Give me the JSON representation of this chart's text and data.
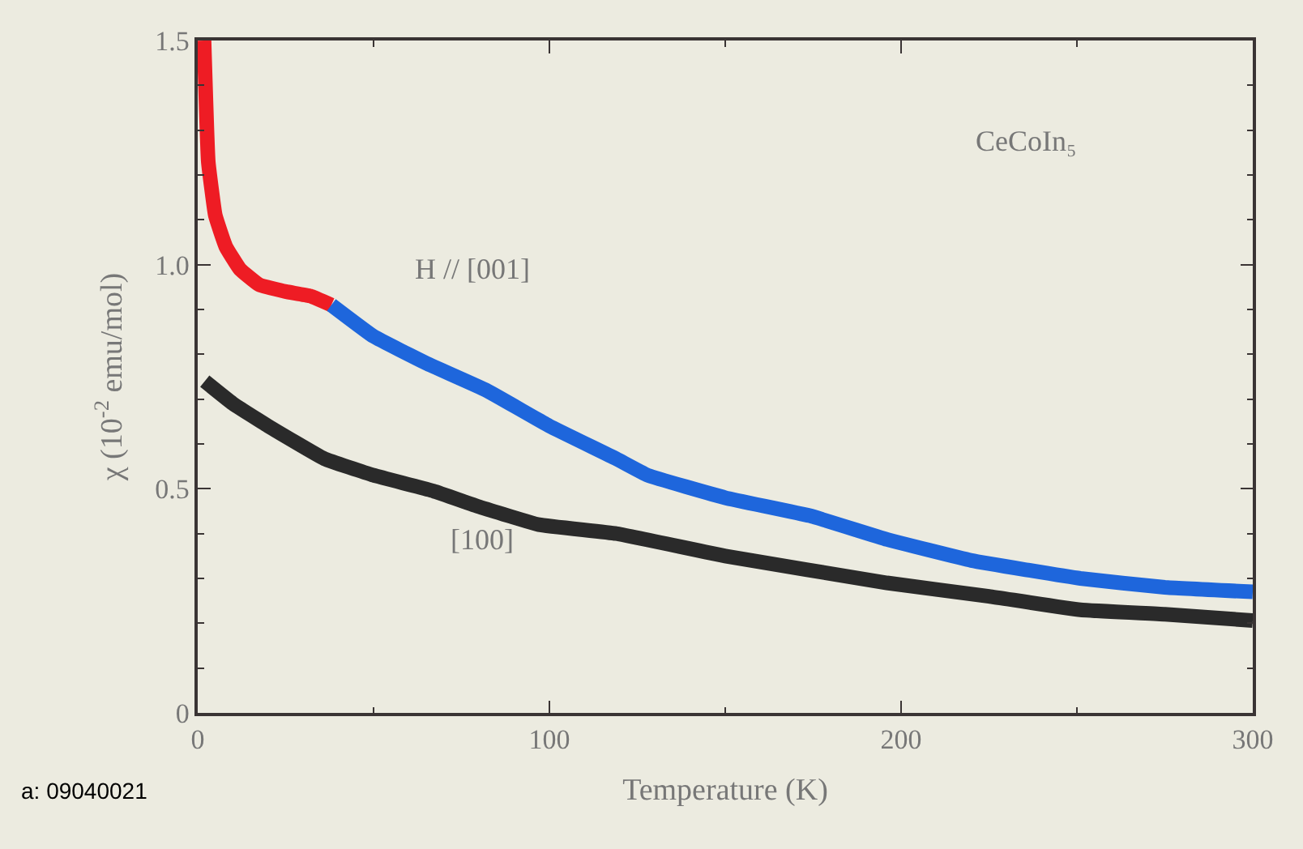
{
  "chart_data": {
    "type": "line",
    "xlabel": "Temperature (K)",
    "ylabel": "χ (10$^{-2}$ emu/mol)",
    "xlim": [
      0,
      300
    ],
    "xticks": [
      0,
      100,
      200,
      300
    ],
    "ylim": [
      0,
      1.5
    ],
    "yticks": [
      0,
      0.5,
      {
        "value": 1.0,
        "label": "1.0"
      },
      1.5
    ],
    "grid": false,
    "marker": "none",
    "line_style": "solid",
    "series": [
      {
        "color": "#ee1c24",
        "x": [
          1.8,
          3,
          5,
          8,
          12,
          17.5,
          25,
          32,
          38
        ],
        "values": [
          1.5,
          1.23,
          1.11,
          1.04,
          0.99,
          0.955,
          0.94,
          0.93,
          0.91
        ]
      },
      {
        "color": "#1e66dc",
        "x": [
          38,
          50,
          65,
          82,
          100,
          119,
          128,
          150,
          174,
          196,
          220,
          251,
          275,
          300
        ],
        "values": [
          0.91,
          0.84,
          0.78,
          0.72,
          0.64,
          0.567,
          0.53,
          0.48,
          0.44,
          0.387,
          0.34,
          0.3,
          0.28,
          0.27
        ]
      },
      {
        "color": "#2a2a2a",
        "x": [
          2,
          10,
          20,
          36,
          50,
          67,
          80,
          97,
          119,
          150,
          196,
          225,
          251,
          275,
          300
        ],
        "values": [
          0.74,
          0.69,
          0.64,
          0.567,
          0.53,
          0.495,
          0.46,
          0.42,
          0.4,
          0.35,
          0.29,
          0.26,
          0.23,
          0.22,
          0.206
        ]
      }
    ],
    "annotations": [
      "H // [001]",
      "[100]",
      "CeCoIn₅",
      "a: 09040021"
    ]
  }
}
